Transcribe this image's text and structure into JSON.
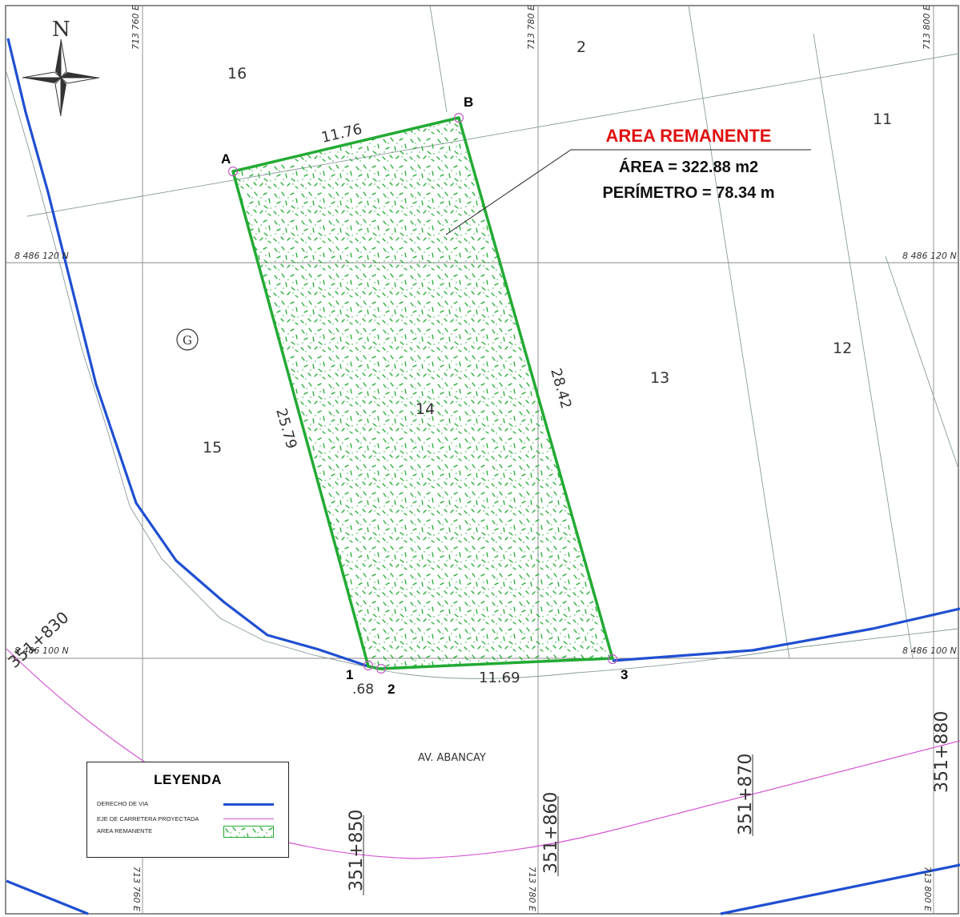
{
  "north_arrow": {
    "label": "N"
  },
  "coordinates": {
    "x_713760": "713 760 E",
    "x_713780": "713 780 E",
    "x_713800": "713 800 E",
    "y_8486120": "8 486 120 N",
    "y_8486100": "8 486 100 N"
  },
  "lots": [
    "16",
    "2",
    "11",
    "15",
    "14",
    "13",
    "12"
  ],
  "g_marker": "G",
  "vertices": {
    "a": "A",
    "b": "B",
    "p1": "1",
    "p2": "2",
    "p3": "3"
  },
  "dimensions": {
    "top": "11.76",
    "left": "25.79",
    "right": "28.42",
    "bottom": "11.69",
    "short": ".68"
  },
  "area_remanente": {
    "title": "AREA REMANENTE",
    "area": "ÁREA = 322.88 m2",
    "perimeter": "PERÍMETRO = 78.34 m"
  },
  "street": "AV. ABANCAY",
  "stations": [
    "351+850",
    "351+860",
    "351+870",
    "351+880",
    "351+830"
  ],
  "legend": {
    "title": "LEYENDA",
    "items": [
      {
        "label": "DERECHO DE VIA",
        "symbol": "blue-line"
      },
      {
        "label": "EJE DE CARRETERA PROYECTADA",
        "symbol": "magenta-line"
      },
      {
        "label": "AREA REMANENTE",
        "symbol": "green-hatch"
      }
    ]
  },
  "colors": {
    "right_of_way": "#1f4fd1",
    "road_axis": "#d455d4",
    "remnant_area": "#22aa33",
    "title_red": "#e01010"
  }
}
